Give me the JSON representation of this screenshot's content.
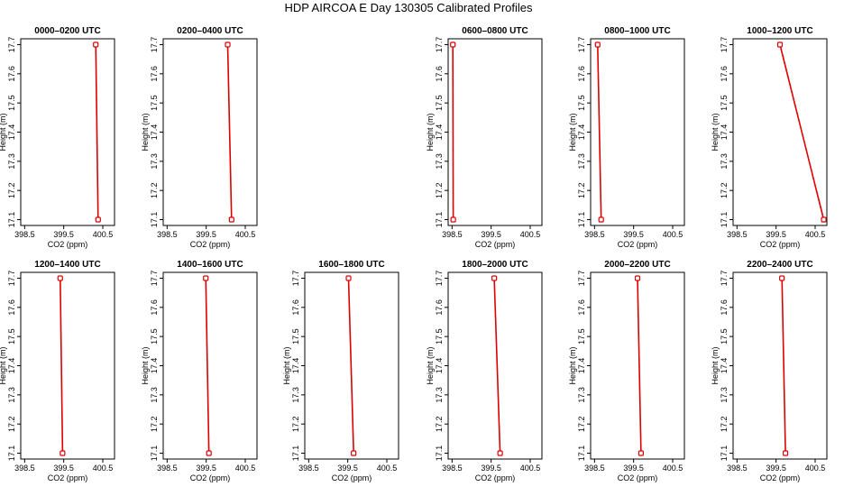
{
  "title": "HDP AIRCOA E  Day 130305  Calibrated Profiles",
  "colors": {
    "profile": "#dd0000",
    "axes": "#000000",
    "background": "#ffffff"
  },
  "chart_data": [
    {
      "type": "line",
      "title": "0000–0200 UTC",
      "xlabel": "CO2 (ppm)",
      "ylabel": "Height (m)",
      "xlim": [
        398.4,
        400.8
      ],
      "ylim": [
        17.08,
        17.72
      ],
      "xticks": [
        398.5,
        399.5,
        400.5
      ],
      "xtick_labels": [
        "398.5",
        "399.5",
        "400.5"
      ],
      "yticks": [
        17.1,
        17.2,
        17.3,
        17.4,
        17.5,
        17.6,
        17.7
      ],
      "ytick_labels": [
        "17.1",
        "17.2",
        "17.3",
        "17.4",
        "17.5",
        "17.6",
        "17.7"
      ],
      "series": [
        {
          "x": [
            400.32,
            400.38
          ],
          "y": [
            17.7,
            17.1
          ]
        }
      ]
    },
    {
      "type": "line",
      "title": "0200–0400 UTC",
      "xlabel": "CO2 (ppm)",
      "ylabel": "Height (m)",
      "xlim": [
        398.4,
        400.8
      ],
      "ylim": [
        17.08,
        17.72
      ],
      "xticks": [
        398.5,
        399.5,
        400.5
      ],
      "xtick_labels": [
        "398.5",
        "399.5",
        "400.5"
      ],
      "yticks": [
        17.1,
        17.2,
        17.3,
        17.4,
        17.5,
        17.6,
        17.7
      ],
      "ytick_labels": [
        "17.1",
        "17.2",
        "17.3",
        "17.4",
        "17.5",
        "17.6",
        "17.7"
      ],
      "series": [
        {
          "x": [
            400.05,
            400.15
          ],
          "y": [
            17.7,
            17.1
          ]
        }
      ]
    },
    null,
    {
      "type": "line",
      "title": "0600–0800 UTC",
      "xlabel": "CO2 (ppm)",
      "ylabel": "Height (m)",
      "xlim": [
        398.4,
        400.8
      ],
      "ylim": [
        17.08,
        17.72
      ],
      "xticks": [
        398.5,
        399.5,
        400.5
      ],
      "xtick_labels": [
        "398.5",
        "399.5",
        "400.5"
      ],
      "yticks": [
        17.1,
        17.2,
        17.3,
        17.4,
        17.5,
        17.6,
        17.7
      ],
      "ytick_labels": [
        "17.1",
        "17.2",
        "17.3",
        "17.4",
        "17.5",
        "17.6",
        "17.7"
      ],
      "series": [
        {
          "x": [
            398.52,
            398.53
          ],
          "y": [
            17.7,
            17.1
          ]
        }
      ]
    },
    {
      "type": "line",
      "title": "0800–1000 UTC",
      "xlabel": "CO2 (ppm)",
      "ylabel": "Height (m)",
      "xlim": [
        398.4,
        400.8
      ],
      "ylim": [
        17.08,
        17.72
      ],
      "xticks": [
        398.5,
        399.5,
        400.5
      ],
      "xtick_labels": [
        "398.5",
        "399.5",
        "400.5"
      ],
      "yticks": [
        17.1,
        17.2,
        17.3,
        17.4,
        17.5,
        17.6,
        17.7
      ],
      "ytick_labels": [
        "17.1",
        "17.2",
        "17.3",
        "17.4",
        "17.5",
        "17.6",
        "17.7"
      ],
      "series": [
        {
          "x": [
            398.58,
            398.67
          ],
          "y": [
            17.7,
            17.1
          ]
        }
      ]
    },
    {
      "type": "line",
      "title": "1000–1200 UTC",
      "xlabel": "CO2 (ppm)",
      "ylabel": "Height (m)",
      "xlim": [
        398.4,
        400.8
      ],
      "ylim": [
        17.08,
        17.72
      ],
      "xticks": [
        398.5,
        399.5,
        400.5
      ],
      "xtick_labels": [
        "398.5",
        "399.5",
        "400.5"
      ],
      "yticks": [
        17.1,
        17.2,
        17.3,
        17.4,
        17.5,
        17.6,
        17.7
      ],
      "ytick_labels": [
        "17.1",
        "17.2",
        "17.3",
        "17.4",
        "17.5",
        "17.6",
        "17.7"
      ],
      "series": [
        {
          "x": [
            399.6,
            400.72
          ],
          "y": [
            17.7,
            17.1
          ]
        }
      ]
    },
    {
      "type": "line",
      "title": "1200–1400 UTC",
      "xlabel": "CO2 (ppm)",
      "ylabel": "Height (m)",
      "xlim": [
        398.4,
        400.8
      ],
      "ylim": [
        17.08,
        17.72
      ],
      "xticks": [
        398.5,
        399.5,
        400.5
      ],
      "xtick_labels": [
        "398.5",
        "399.5",
        "400.5"
      ],
      "yticks": [
        17.1,
        17.2,
        17.3,
        17.4,
        17.5,
        17.6,
        17.7
      ],
      "ytick_labels": [
        "17.1",
        "17.2",
        "17.3",
        "17.4",
        "17.5",
        "17.6",
        "17.7"
      ],
      "series": [
        {
          "x": [
            399.41,
            399.47
          ],
          "y": [
            17.7,
            17.1
          ]
        }
      ]
    },
    {
      "type": "line",
      "title": "1400–1600 UTC",
      "xlabel": "CO2 (ppm)",
      "ylabel": "Height (m)",
      "xlim": [
        398.4,
        400.8
      ],
      "ylim": [
        17.08,
        17.72
      ],
      "xticks": [
        398.5,
        399.5,
        400.5
      ],
      "xtick_labels": [
        "398.5",
        "399.5",
        "400.5"
      ],
      "yticks": [
        17.1,
        17.2,
        17.3,
        17.4,
        17.5,
        17.6,
        17.7
      ],
      "ytick_labels": [
        "17.1",
        "17.2",
        "17.3",
        "17.4",
        "17.5",
        "17.6",
        "17.7"
      ],
      "series": [
        {
          "x": [
            399.49,
            399.57
          ],
          "y": [
            17.7,
            17.1
          ]
        }
      ]
    },
    {
      "type": "line",
      "title": "1600–1800 UTC",
      "xlabel": "CO2 (ppm)",
      "ylabel": "Height (m)",
      "xlim": [
        398.4,
        400.8
      ],
      "ylim": [
        17.08,
        17.72
      ],
      "xticks": [
        398.5,
        399.5,
        400.5
      ],
      "xtick_labels": [
        "398.5",
        "399.5",
        "400.5"
      ],
      "yticks": [
        17.1,
        17.2,
        17.3,
        17.4,
        17.5,
        17.6,
        17.7
      ],
      "ytick_labels": [
        "17.1",
        "17.2",
        "17.3",
        "17.4",
        "17.5",
        "17.6",
        "17.7"
      ],
      "series": [
        {
          "x": [
            399.52,
            399.65
          ],
          "y": [
            17.7,
            17.1
          ]
        }
      ]
    },
    {
      "type": "line",
      "title": "1800–2000 UTC",
      "xlabel": "CO2 (ppm)",
      "ylabel": "Height (m)",
      "xlim": [
        398.4,
        400.8
      ],
      "ylim": [
        17.08,
        17.72
      ],
      "xticks": [
        398.5,
        399.5,
        400.5
      ],
      "xtick_labels": [
        "398.5",
        "399.5",
        "400.5"
      ],
      "yticks": [
        17.1,
        17.2,
        17.3,
        17.4,
        17.5,
        17.6,
        17.7
      ],
      "ytick_labels": [
        "17.1",
        "17.2",
        "17.3",
        "17.4",
        "17.5",
        "17.6",
        "17.7"
      ],
      "series": [
        {
          "x": [
            399.58,
            399.73
          ],
          "y": [
            17.7,
            17.1
          ]
        }
      ]
    },
    {
      "type": "line",
      "title": "2000–2200 UTC",
      "xlabel": "CO2 (ppm)",
      "ylabel": "Height (m)",
      "xlim": [
        398.4,
        400.8
      ],
      "ylim": [
        17.08,
        17.72
      ],
      "xticks": [
        398.5,
        399.5,
        400.5
      ],
      "xtick_labels": [
        "398.5",
        "399.5",
        "400.5"
      ],
      "yticks": [
        17.1,
        17.2,
        17.3,
        17.4,
        17.5,
        17.6,
        17.7
      ],
      "ytick_labels": [
        "17.1",
        "17.2",
        "17.3",
        "17.4",
        "17.5",
        "17.6",
        "17.7"
      ],
      "series": [
        {
          "x": [
            399.6,
            399.69
          ],
          "y": [
            17.7,
            17.1
          ]
        }
      ]
    },
    {
      "type": "line",
      "title": "2200–2400 UTC",
      "xlabel": "CO2 (ppm)",
      "ylabel": "Height (m)",
      "xlim": [
        398.4,
        400.8
      ],
      "ylim": [
        17.08,
        17.72
      ],
      "xticks": [
        398.5,
        399.5,
        400.5
      ],
      "xtick_labels": [
        "398.5",
        "399.5",
        "400.5"
      ],
      "yticks": [
        17.1,
        17.2,
        17.3,
        17.4,
        17.5,
        17.6,
        17.7
      ],
      "ytick_labels": [
        "17.1",
        "17.2",
        "17.3",
        "17.4",
        "17.5",
        "17.6",
        "17.7"
      ],
      "series": [
        {
          "x": [
            399.65,
            399.74
          ],
          "y": [
            17.7,
            17.1
          ]
        }
      ]
    }
  ]
}
